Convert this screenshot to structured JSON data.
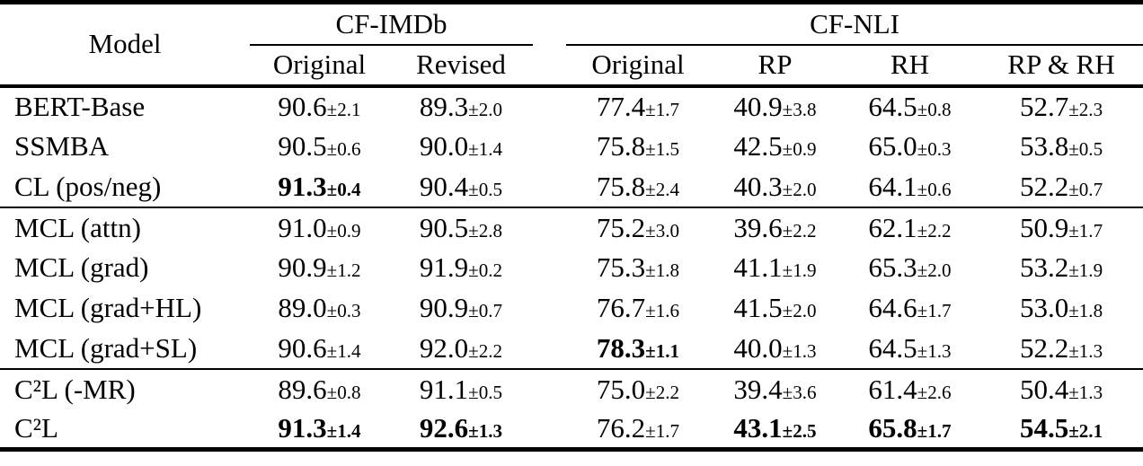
{
  "table": {
    "pm_symbol": "±",
    "header": {
      "model_label": "Model",
      "groups": [
        {
          "label": "CF-IMDb",
          "columns": [
            "Original",
            "Revised"
          ]
        },
        {
          "label": "CF-NLI",
          "columns": [
            "Original",
            "RP",
            "RH",
            "RP & RH"
          ]
        }
      ]
    },
    "blocks": [
      {
        "rows": [
          {
            "model": "BERT-Base",
            "values": [
              {
                "v": "90.6",
                "pm": "2.1",
                "bold": false
              },
              {
                "v": "89.3",
                "pm": "2.0",
                "bold": false
              },
              {
                "v": "77.4",
                "pm": "1.7",
                "bold": false
              },
              {
                "v": "40.9",
                "pm": "3.8",
                "bold": false
              },
              {
                "v": "64.5",
                "pm": "0.8",
                "bold": false
              },
              {
                "v": "52.7",
                "pm": "2.3",
                "bold": false
              }
            ]
          },
          {
            "model": "SSMBA",
            "values": [
              {
                "v": "90.5",
                "pm": "0.6",
                "bold": false
              },
              {
                "v": "90.0",
                "pm": "1.4",
                "bold": false
              },
              {
                "v": "75.8",
                "pm": "1.5",
                "bold": false
              },
              {
                "v": "42.5",
                "pm": "0.9",
                "bold": false
              },
              {
                "v": "65.0",
                "pm": "0.3",
                "bold": false
              },
              {
                "v": "53.8",
                "pm": "0.5",
                "bold": false
              }
            ]
          },
          {
            "model": "CL (pos/neg)",
            "values": [
              {
                "v": "91.3",
                "pm": "0.4",
                "bold": true
              },
              {
                "v": "90.4",
                "pm": "0.5",
                "bold": false
              },
              {
                "v": "75.8",
                "pm": "2.4",
                "bold": false
              },
              {
                "v": "40.3",
                "pm": "2.0",
                "bold": false
              },
              {
                "v": "64.1",
                "pm": "0.6",
                "bold": false
              },
              {
                "v": "52.2",
                "pm": "0.7",
                "bold": false
              }
            ]
          }
        ]
      },
      {
        "rows": [
          {
            "model": "MCL (attn)",
            "values": [
              {
                "v": "91.0",
                "pm": "0.9",
                "bold": false
              },
              {
                "v": "90.5",
                "pm": "2.8",
                "bold": false
              },
              {
                "v": "75.2",
                "pm": "3.0",
                "bold": false
              },
              {
                "v": "39.6",
                "pm": "2.2",
                "bold": false
              },
              {
                "v": "62.1",
                "pm": "2.2",
                "bold": false
              },
              {
                "v": "50.9",
                "pm": "1.7",
                "bold": false
              }
            ]
          },
          {
            "model": "MCL (grad)",
            "values": [
              {
                "v": "90.9",
                "pm": "1.2",
                "bold": false
              },
              {
                "v": "91.9",
                "pm": "0.2",
                "bold": false
              },
              {
                "v": "75.3",
                "pm": "1.8",
                "bold": false
              },
              {
                "v": "41.1",
                "pm": "1.9",
                "bold": false
              },
              {
                "v": "65.3",
                "pm": "2.0",
                "bold": false
              },
              {
                "v": "53.2",
                "pm": "1.9",
                "bold": false
              }
            ]
          },
          {
            "model": "MCL (grad+HL)",
            "values": [
              {
                "v": "89.0",
                "pm": "0.3",
                "bold": false
              },
              {
                "v": "90.9",
                "pm": "0.7",
                "bold": false
              },
              {
                "v": "76.7",
                "pm": "1.6",
                "bold": false
              },
              {
                "v": "41.5",
                "pm": "2.0",
                "bold": false
              },
              {
                "v": "64.6",
                "pm": "1.7",
                "bold": false
              },
              {
                "v": "53.0",
                "pm": "1.8",
                "bold": false
              }
            ]
          },
          {
            "model": "MCL (grad+SL)",
            "values": [
              {
                "v": "90.6",
                "pm": "1.4",
                "bold": false
              },
              {
                "v": "92.0",
                "pm": "2.2",
                "bold": false
              },
              {
                "v": "78.3",
                "pm": "1.1",
                "bold": true
              },
              {
                "v": "40.0",
                "pm": "1.3",
                "bold": false
              },
              {
                "v": "64.5",
                "pm": "1.3",
                "bold": false
              },
              {
                "v": "52.2",
                "pm": "1.3",
                "bold": false
              }
            ]
          }
        ]
      },
      {
        "rows": [
          {
            "model": "C²L (-MR)",
            "values": [
              {
                "v": "89.6",
                "pm": "0.8",
                "bold": false
              },
              {
                "v": "91.1",
                "pm": "0.5",
                "bold": false
              },
              {
                "v": "75.0",
                "pm": "2.2",
                "bold": false
              },
              {
                "v": "39.4",
                "pm": "3.6",
                "bold": false
              },
              {
                "v": "61.4",
                "pm": "2.6",
                "bold": false
              },
              {
                "v": "50.4",
                "pm": "1.3",
                "bold": false
              }
            ]
          },
          {
            "model": "C²L",
            "values": [
              {
                "v": "91.3",
                "pm": "1.4",
                "bold": true
              },
              {
                "v": "92.6",
                "pm": "1.3",
                "bold": true
              },
              {
                "v": "76.2",
                "pm": "1.7",
                "bold": false
              },
              {
                "v": "43.1",
                "pm": "2.5",
                "bold": true
              },
              {
                "v": "65.8",
                "pm": "1.7",
                "bold": true
              },
              {
                "v": "54.5",
                "pm": "2.1",
                "bold": true
              }
            ]
          }
        ]
      }
    ]
  }
}
